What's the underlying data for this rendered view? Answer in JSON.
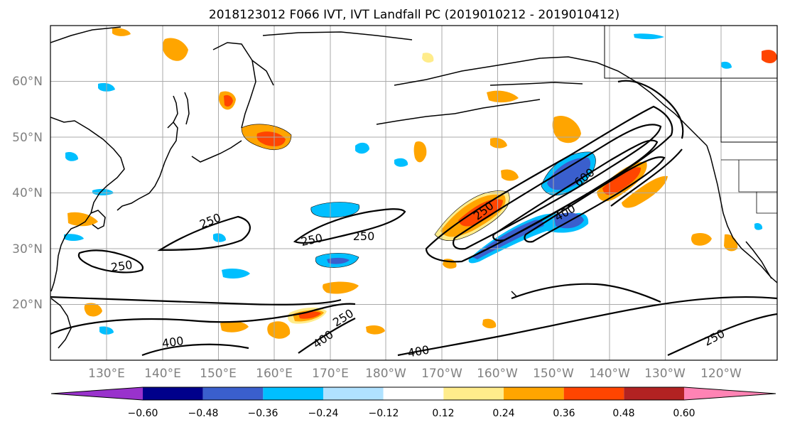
{
  "title": "2018123012 F066 IVT, IVT Landfall PC (2019010212 - 2019010412)",
  "lat_labels": [
    "60°N",
    "50°N",
    "40°N",
    "30°N",
    "20°N"
  ],
  "lon_labels": [
    "130°E",
    "140°E",
    "150°E",
    "160°E",
    "170°E",
    "180°W",
    "170°W",
    "160°W",
    "150°W",
    "140°W",
    "130°W",
    "120°W"
  ],
  "colorbar": {
    "labels": [
      "−0.60",
      "−0.48",
      "−0.36",
      "−0.24",
      "−0.12",
      "0.12",
      "0.24",
      "0.36",
      "0.48",
      "0.60"
    ],
    "colors": [
      "#9932CC",
      "#00008B",
      "#3A5FCD",
      "#00BFFF",
      "#B0E2FF",
      "#FFFFFF",
      "#FFEC8B",
      "#FFA500",
      "#FF4500",
      "#B22222",
      "#FF83B4"
    ]
  },
  "contour_labels": [
    "250",
    "250",
    "250",
    "250",
    "250",
    "250",
    "250",
    "400",
    "400",
    "400",
    "400",
    "600"
  ],
  "colors": {
    "grid": "#aaaaaa",
    "contour": "#000000",
    "coast": "#000000"
  }
}
